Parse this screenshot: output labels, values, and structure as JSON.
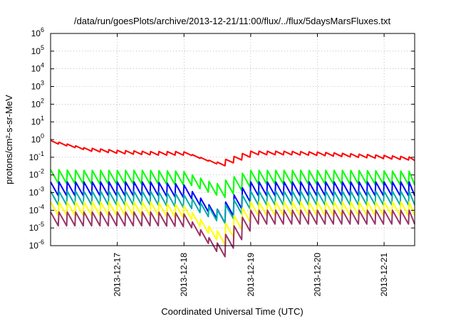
{
  "chart_data": {
    "type": "line",
    "title": "/data/run/goesPlots/archive/2013-12-21/11:00/flux/../flux/5daysMarsFluxes.txt",
    "xlabel": "Coordinated Universal Time (UTC)",
    "ylabel": "protons/cm²-s-sr-MeV",
    "y_scale": "log",
    "ylim": [
      1e-06,
      1000000.0
    ],
    "y_ticks": [
      {
        "base": "10",
        "exp": "-6"
      },
      {
        "base": "10",
        "exp": "-5"
      },
      {
        "base": "10",
        "exp": "-4"
      },
      {
        "base": "10",
        "exp": "-3"
      },
      {
        "base": "10",
        "exp": "-2"
      },
      {
        "base": "10",
        "exp": "-1"
      },
      {
        "base": "10",
        "exp": "0"
      },
      {
        "base": "10",
        "exp": "1"
      },
      {
        "base": "10",
        "exp": "2"
      },
      {
        "base": "10",
        "exp": "3"
      },
      {
        "base": "10",
        "exp": "4"
      },
      {
        "base": "10",
        "exp": "5"
      },
      {
        "base": "10",
        "exp": "6"
      }
    ],
    "xlim": [
      "2013-12-16 00:00",
      "2013-12-21 11:00"
    ],
    "x_ticks": [
      "2013-12-17",
      "2013-12-18",
      "2013-12-19",
      "2013-12-20",
      "2013-12-21"
    ],
    "grid": true,
    "legend": "none",
    "sawtooth_period_hours": 3,
    "series": [
      {
        "color": "#ff0000",
        "values": [
          0.9,
          0.35,
          0.25,
          0.21,
          0.21,
          0.05,
          0.22,
          0.22,
          0.2,
          0.16,
          0.13,
          0.1
        ]
      },
      {
        "color": "#00ff00",
        "values": [
          0.02,
          0.018,
          0.018,
          0.018,
          0.016,
          0.003,
          0.018,
          0.018,
          0.018,
          0.018,
          0.017,
          0.016
        ]
      },
      {
        "color": "#0000ff",
        "values": [
          0.004,
          0.004,
          0.004,
          0.004,
          0.003,
          0.0001,
          0.004,
          0.004,
          0.004,
          0.004,
          0.004,
          0.004
        ]
      },
      {
        "color": "#00aaaa",
        "values": [
          0.0012,
          0.0012,
          0.0012,
          0.0012,
          0.0008,
          0.0001,
          0.0012,
          0.0012,
          0.0012,
          0.0012,
          0.0012,
          0.0012
        ]
      },
      {
        "color": "#ffff00",
        "values": [
          0.0003,
          0.0003,
          0.0003,
          0.0003,
          0.0002,
          6e-06,
          0.0003,
          0.0003,
          0.0003,
          0.0003,
          0.0003,
          0.0003
        ]
      },
      {
        "color": "#993366",
        "values": [
          8e-05,
          8e-05,
          8e-05,
          8e-05,
          7e-05,
          1.2e-06,
          0.0001,
          0.0001,
          0.0001,
          0.0001,
          0.0001,
          0.0001
        ]
      }
    ]
  }
}
